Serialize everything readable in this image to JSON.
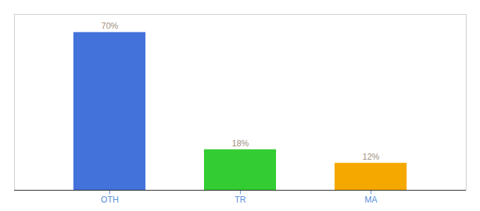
{
  "chart_data": {
    "type": "bar",
    "categories": [
      "OTH",
      "TR",
      "MA"
    ],
    "values": [
      70,
      18,
      12
    ],
    "colors": [
      "#4472db",
      "#33cc33",
      "#f5a800"
    ],
    "data_labels": true,
    "value_labels": [
      "70%",
      "18%",
      "12%"
    ],
    "ylim": [
      0,
      78
    ],
    "tick_labels": "x"
  }
}
